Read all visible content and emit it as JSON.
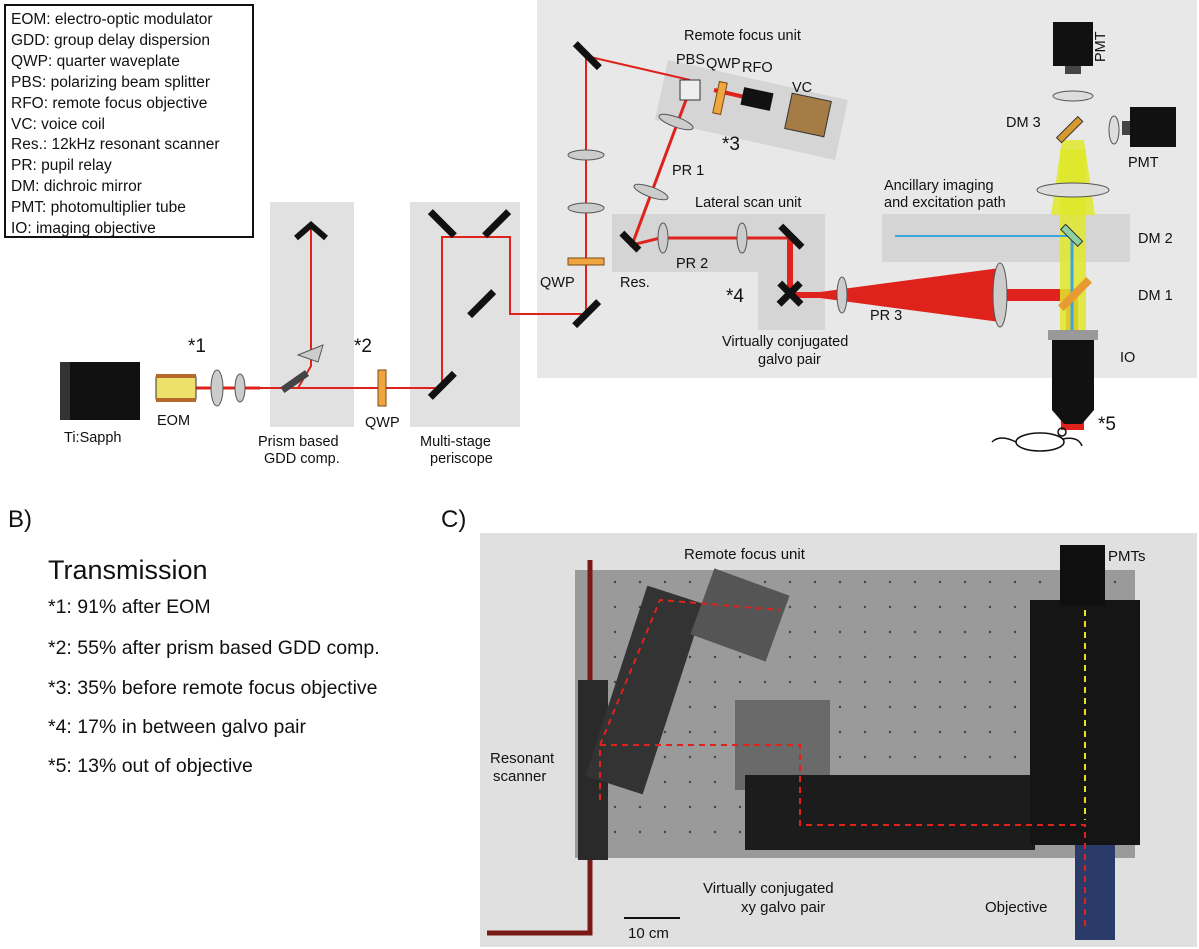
{
  "panelA": {
    "legend": [
      "EOM: electro-optic modulator",
      "GDD: group delay dispersion",
      "QWP: quarter waveplate",
      "PBS: polarizing beam splitter",
      "RFO: remote focus objective",
      "VC: voice coil",
      "Res.: 12kHz resonant scanner",
      "PR: pupil relay",
      "DM: dichroic mirror",
      "PMT: photomultiplier tube",
      "IO: imaging objective"
    ],
    "labels": {
      "tisapph": "Ti:Sapph",
      "eom": "EOM",
      "star1": "*1",
      "star2": "*2",
      "star3": "*3",
      "star4": "*4",
      "star5": "*5",
      "prism1": "Prism based",
      "prism2": "GDD comp.",
      "qwp_low": "QWP",
      "peri1": "Multi-stage",
      "peri2": "periscope",
      "qwp_left": "QWP",
      "res": "Res.",
      "remote_focus": "Remote focus unit",
      "pbs": "PBS",
      "qwp_rf": "QWP",
      "rfo": "RFO",
      "vc": "VC",
      "pr1": "PR 1",
      "pr2": "PR 2",
      "pr3": "PR 3",
      "lateral": "Lateral scan unit",
      "galvo1": "Virtually conjugated",
      "galvo2": "galvo pair",
      "ancillary1": "Ancillary imaging",
      "ancillary2": "and excitation path",
      "dm1": "DM 1",
      "dm2": "DM 2",
      "dm3": "DM 3",
      "pmt_top": "PMT",
      "pmt_right": "PMT",
      "io": "IO"
    }
  },
  "panelB": {
    "letter": "B)",
    "title": "Transmission",
    "lines": [
      "*1: 91% after EOM",
      "*2: 55% after prism based GDD comp.",
      "*3: 35% before remote focus objective",
      "*4: 17% in between galvo pair",
      "*5: 13% out of objective"
    ]
  },
  "panelC": {
    "letter": "C)",
    "labels": {
      "remote_focus": "Remote focus unit",
      "pmts": "PMTs",
      "resonant1": "Resonant",
      "resonant2": "scanner",
      "galvo1": "Virtually conjugated",
      "galvo2": "xy galvo pair",
      "objective": "Objective",
      "scalebar": "10 cm"
    }
  },
  "colors": {
    "beam": "#e0221c",
    "panel_bg": "#e6e6e6",
    "yellow_beam": "#dfe82a",
    "blue_beam": "#3aa6dd",
    "waveplate": "#f0a640"
  }
}
